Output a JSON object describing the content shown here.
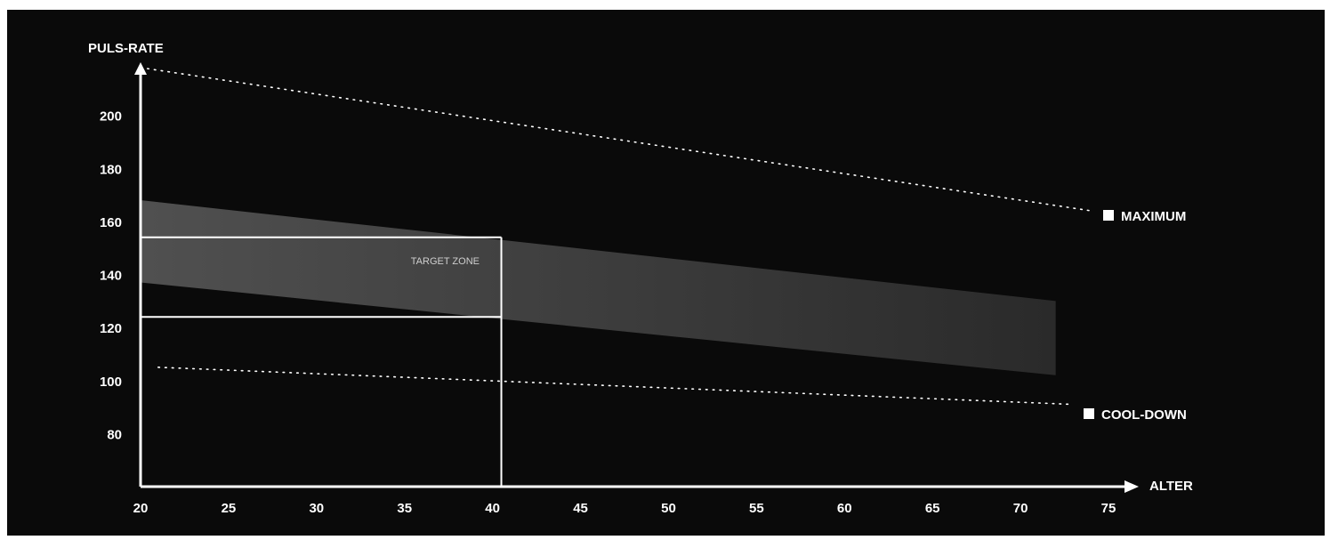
{
  "colors": {
    "background": "#0a0a0a",
    "foreground": "#ffffff",
    "band_start": "#505050",
    "band_end": "#2a2a2a"
  },
  "chart_data": {
    "type": "line",
    "ylabel": "PULS-RATE",
    "xlabel": "ALTER",
    "xlim": [
      20,
      75
    ],
    "ylim": [
      60,
      220
    ],
    "x_ticks": [
      20,
      25,
      30,
      35,
      40,
      45,
      50,
      55,
      60,
      65,
      70,
      75
    ],
    "y_ticks": [
      80,
      100,
      120,
      140,
      160,
      180,
      200
    ],
    "grid": false,
    "series": [
      {
        "name": "MAXIMUM",
        "style": "dotted",
        "x": [
          20,
          74
        ],
        "y": [
          218,
          164
        ]
      },
      {
        "name": "COOL-DOWN",
        "style": "dotted",
        "x": [
          21,
          73
        ],
        "y": [
          105,
          91
        ]
      }
    ],
    "band": {
      "x": [
        20,
        72
      ],
      "upper": [
        168,
        130
      ],
      "lower": [
        137,
        102
      ]
    },
    "target_zone": {
      "label": "TARGET ZONE",
      "age": 40.5,
      "upper": 154,
      "lower": 124
    }
  }
}
